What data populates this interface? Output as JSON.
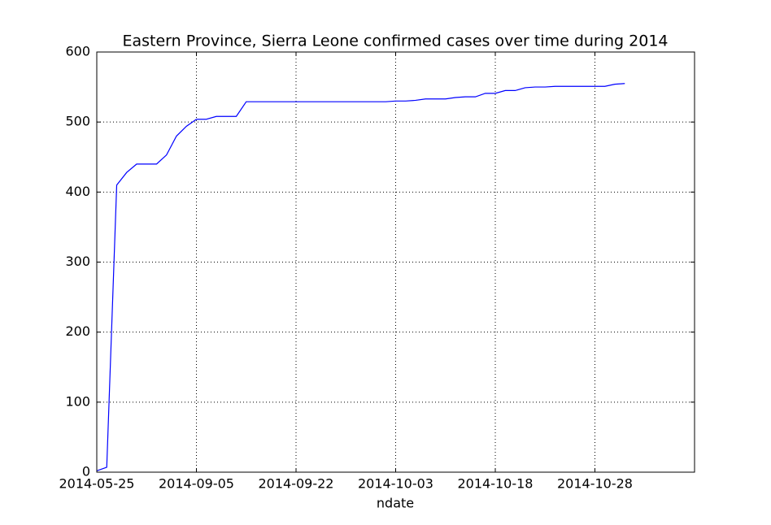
{
  "chart_data": {
    "type": "line",
    "title": "Eastern Province, Sierra Leone confirmed cases over time during 2014",
    "x_label": "ndate",
    "categories": [
      "2014-05-25",
      null,
      null,
      null,
      null,
      null,
      null,
      null,
      null,
      null,
      "2014-09-05",
      null,
      null,
      null,
      null,
      null,
      null,
      null,
      null,
      null,
      "2014-09-22",
      null,
      null,
      null,
      null,
      null,
      null,
      null,
      null,
      null,
      "2014-10-03",
      null,
      null,
      null,
      null,
      null,
      null,
      null,
      null,
      null,
      "2014-10-18",
      null,
      null,
      null,
      null,
      null,
      null,
      null,
      null,
      null,
      "2014-10-28",
      null,
      null,
      null
    ],
    "series": [
      {
        "name": "confirmed",
        "color": "#0000ff",
        "values": [
          2,
          7,
          410,
          428,
          440,
          440,
          440,
          453,
          480,
          494,
          504,
          504,
          508,
          508,
          508,
          529,
          529,
          529,
          529,
          529,
          529,
          529,
          529,
          529,
          529,
          529,
          529,
          529,
          529,
          529,
          530,
          530,
          531,
          533,
          533,
          533,
          535,
          536,
          536,
          541,
          541,
          545,
          545,
          549,
          550,
          550,
          551,
          551,
          551,
          551,
          551,
          551,
          554,
          555
        ]
      }
    ],
    "xlim": [
      0,
      60
    ],
    "ylim": [
      0,
      600
    ],
    "yticks": [
      0,
      100,
      200,
      300,
      400,
      500,
      600
    ],
    "grid": true
  }
}
